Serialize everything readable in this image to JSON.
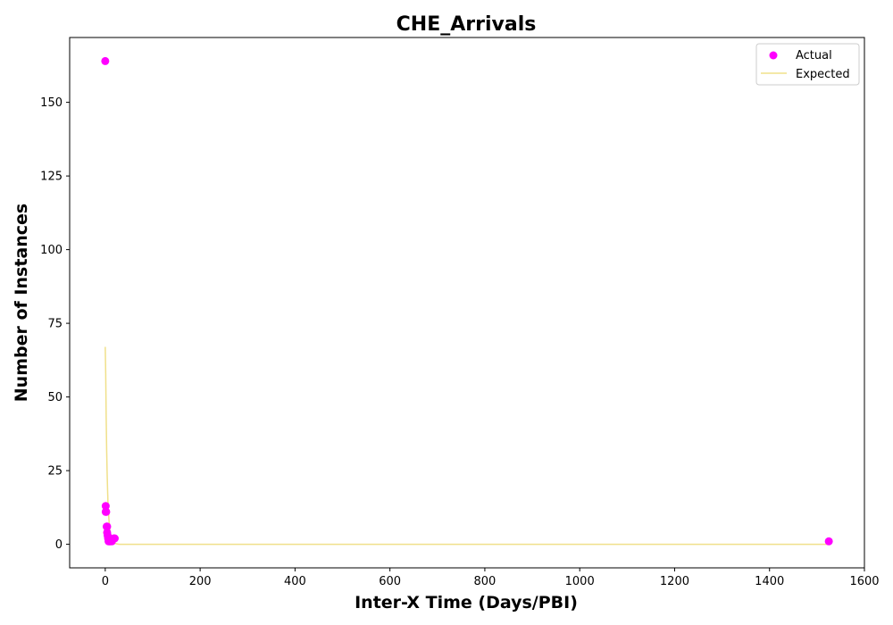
{
  "chart_data": {
    "type": "scatter",
    "title": "CHE_Arrivals",
    "xlabel": "Inter-X Time (Days/PBI)",
    "ylabel": "Number of Instances",
    "xlim": [
      -75,
      1600
    ],
    "ylim": [
      -8,
      172
    ],
    "xticks": [
      0,
      200,
      400,
      600,
      800,
      1000,
      1200,
      1400,
      1600
    ],
    "yticks": [
      0,
      25,
      50,
      75,
      100,
      125,
      150
    ],
    "legend_position": "top-right",
    "colors": {
      "actual": "#ff00ff",
      "expected": "#f0e08a"
    },
    "series": [
      {
        "name": "Actual",
        "kind": "scatter",
        "points": [
          [
            0,
            164
          ],
          [
            1,
            13
          ],
          [
            1,
            11
          ],
          [
            2,
            11
          ],
          [
            3,
            6
          ],
          [
            4,
            6
          ],
          [
            4,
            4
          ],
          [
            5,
            3
          ],
          [
            6,
            2
          ],
          [
            7,
            1
          ],
          [
            9,
            1
          ],
          [
            11,
            1
          ],
          [
            14,
            1
          ],
          [
            18,
            2
          ],
          [
            20,
            2
          ],
          [
            1525,
            1
          ]
        ]
      },
      {
        "name": "Expected",
        "kind": "line",
        "points": [
          [
            0,
            67
          ],
          [
            1,
            58
          ],
          [
            2,
            43
          ],
          [
            3,
            32
          ],
          [
            4,
            24
          ],
          [
            5,
            18
          ],
          [
            6,
            13
          ],
          [
            8,
            8
          ],
          [
            10,
            4
          ],
          [
            13,
            2
          ],
          [
            16,
            1
          ],
          [
            20,
            0.4
          ],
          [
            25,
            0.1
          ],
          [
            30,
            0
          ],
          [
            100,
            0
          ],
          [
            500,
            0
          ],
          [
            1000,
            0
          ],
          [
            1525,
            0
          ]
        ]
      }
    ]
  }
}
